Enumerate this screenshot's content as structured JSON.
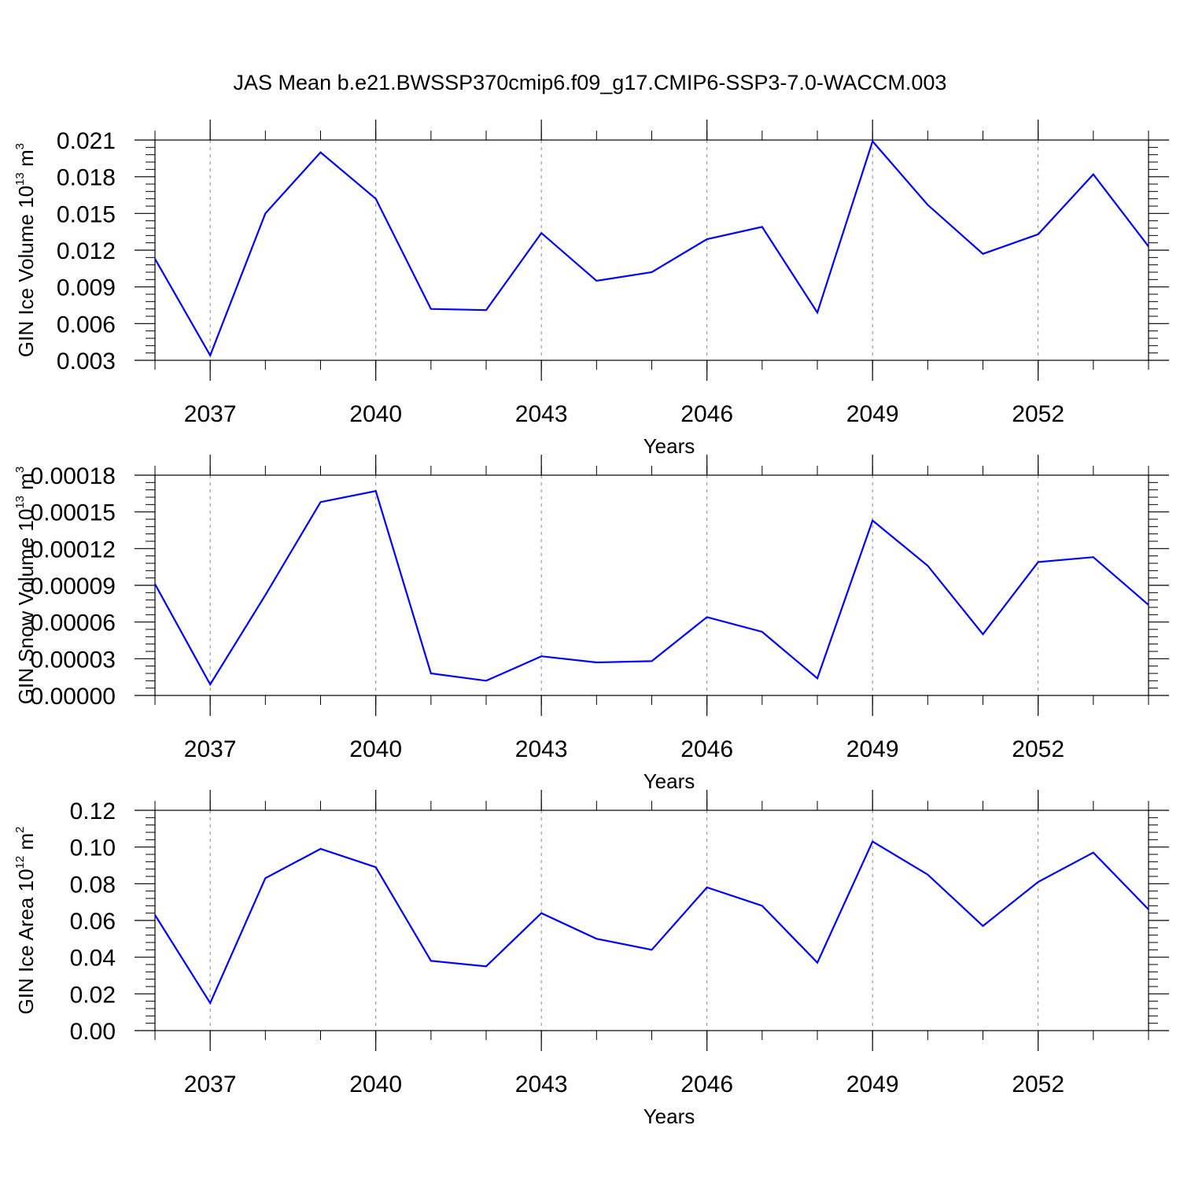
{
  "title": "JAS Mean b.e21.BWSSP370cmip6.f09_g17.CMIP6-SSP3-7.0-WACCM.003",
  "chart_data": [
    {
      "type": "line",
      "ylabel": {
        "main": "GIN Ice Volume 10",
        "sup": "13",
        "unit": " m",
        "unit_sup": "3"
      },
      "xlabel": "Years",
      "xlim": [
        2036,
        2054
      ],
      "ylim": [
        0.003,
        0.021
      ],
      "x_ticks": [
        2037,
        2040,
        2043,
        2046,
        2049,
        2052
      ],
      "y_ticks": [
        "0.003",
        "0.006",
        "0.009",
        "0.012",
        "0.015",
        "0.018",
        "0.021"
      ],
      "grid": "vertical dashed at labeled years",
      "line_color": "#0000ff",
      "x": [
        2036,
        2037,
        2038,
        2039,
        2040,
        2041,
        2042,
        2043,
        2044,
        2045,
        2046,
        2047,
        2048,
        2049,
        2050,
        2051,
        2052,
        2053,
        2054
      ],
      "y": [
        0.0113,
        0.0034,
        0.015,
        0.02,
        0.0162,
        0.0072,
        0.0071,
        0.0134,
        0.0095,
        0.0102,
        0.0129,
        0.0139,
        0.0069,
        0.0209,
        0.0157,
        0.0117,
        0.0133,
        0.0182,
        0.0123
      ]
    },
    {
      "type": "line",
      "ylabel": {
        "main": "GIN Snow Volume 10",
        "sup": "13",
        "unit": " m",
        "unit_sup": "3"
      },
      "xlabel": "Years",
      "xlim": [
        2036,
        2054
      ],
      "ylim": [
        0.0,
        0.00018
      ],
      "x_ticks": [
        2037,
        2040,
        2043,
        2046,
        2049,
        2052
      ],
      "y_ticks": [
        "0.00000",
        "0.00003",
        "0.00006",
        "0.00009",
        "0.00012",
        "0.00015",
        "0.00018"
      ],
      "grid": "vertical dashed at labeled years",
      "line_color": "#0000ff",
      "x": [
        2036,
        2037,
        2038,
        2039,
        2040,
        2041,
        2042,
        2043,
        2044,
        2045,
        2046,
        2047,
        2048,
        2049,
        2050,
        2051,
        2052,
        2053,
        2054
      ],
      "y": [
        9.1e-05,
        9e-06,
        8.2e-05,
        0.000158,
        0.000167,
        1.8e-05,
        1.2e-05,
        3.2e-05,
        2.7e-05,
        2.8e-05,
        6.4e-05,
        5.2e-05,
        1.4e-05,
        0.000143,
        0.000106,
        5e-05,
        0.000109,
        0.000113,
        7.4e-05
      ]
    },
    {
      "type": "line",
      "ylabel": {
        "main": "GIN Ice Area 10",
        "sup": "12",
        "unit": " m",
        "unit_sup": "2"
      },
      "xlabel": "Years",
      "xlim": [
        2036,
        2054
      ],
      "ylim": [
        0.0,
        0.12
      ],
      "x_ticks": [
        2037,
        2040,
        2043,
        2046,
        2049,
        2052
      ],
      "y_ticks": [
        "0.00",
        "0.02",
        "0.04",
        "0.06",
        "0.08",
        "0.10",
        "0.12"
      ],
      "grid": "vertical dashed at labeled years",
      "line_color": "#0000ff",
      "x": [
        2036,
        2037,
        2038,
        2039,
        2040,
        2041,
        2042,
        2043,
        2044,
        2045,
        2046,
        2047,
        2048,
        2049,
        2050,
        2051,
        2052,
        2053,
        2054
      ],
      "y": [
        0.063,
        0.015,
        0.083,
        0.099,
        0.089,
        0.038,
        0.035,
        0.064,
        0.05,
        0.044,
        0.078,
        0.068,
        0.037,
        0.103,
        0.085,
        0.057,
        0.081,
        0.097,
        0.066
      ]
    }
  ]
}
